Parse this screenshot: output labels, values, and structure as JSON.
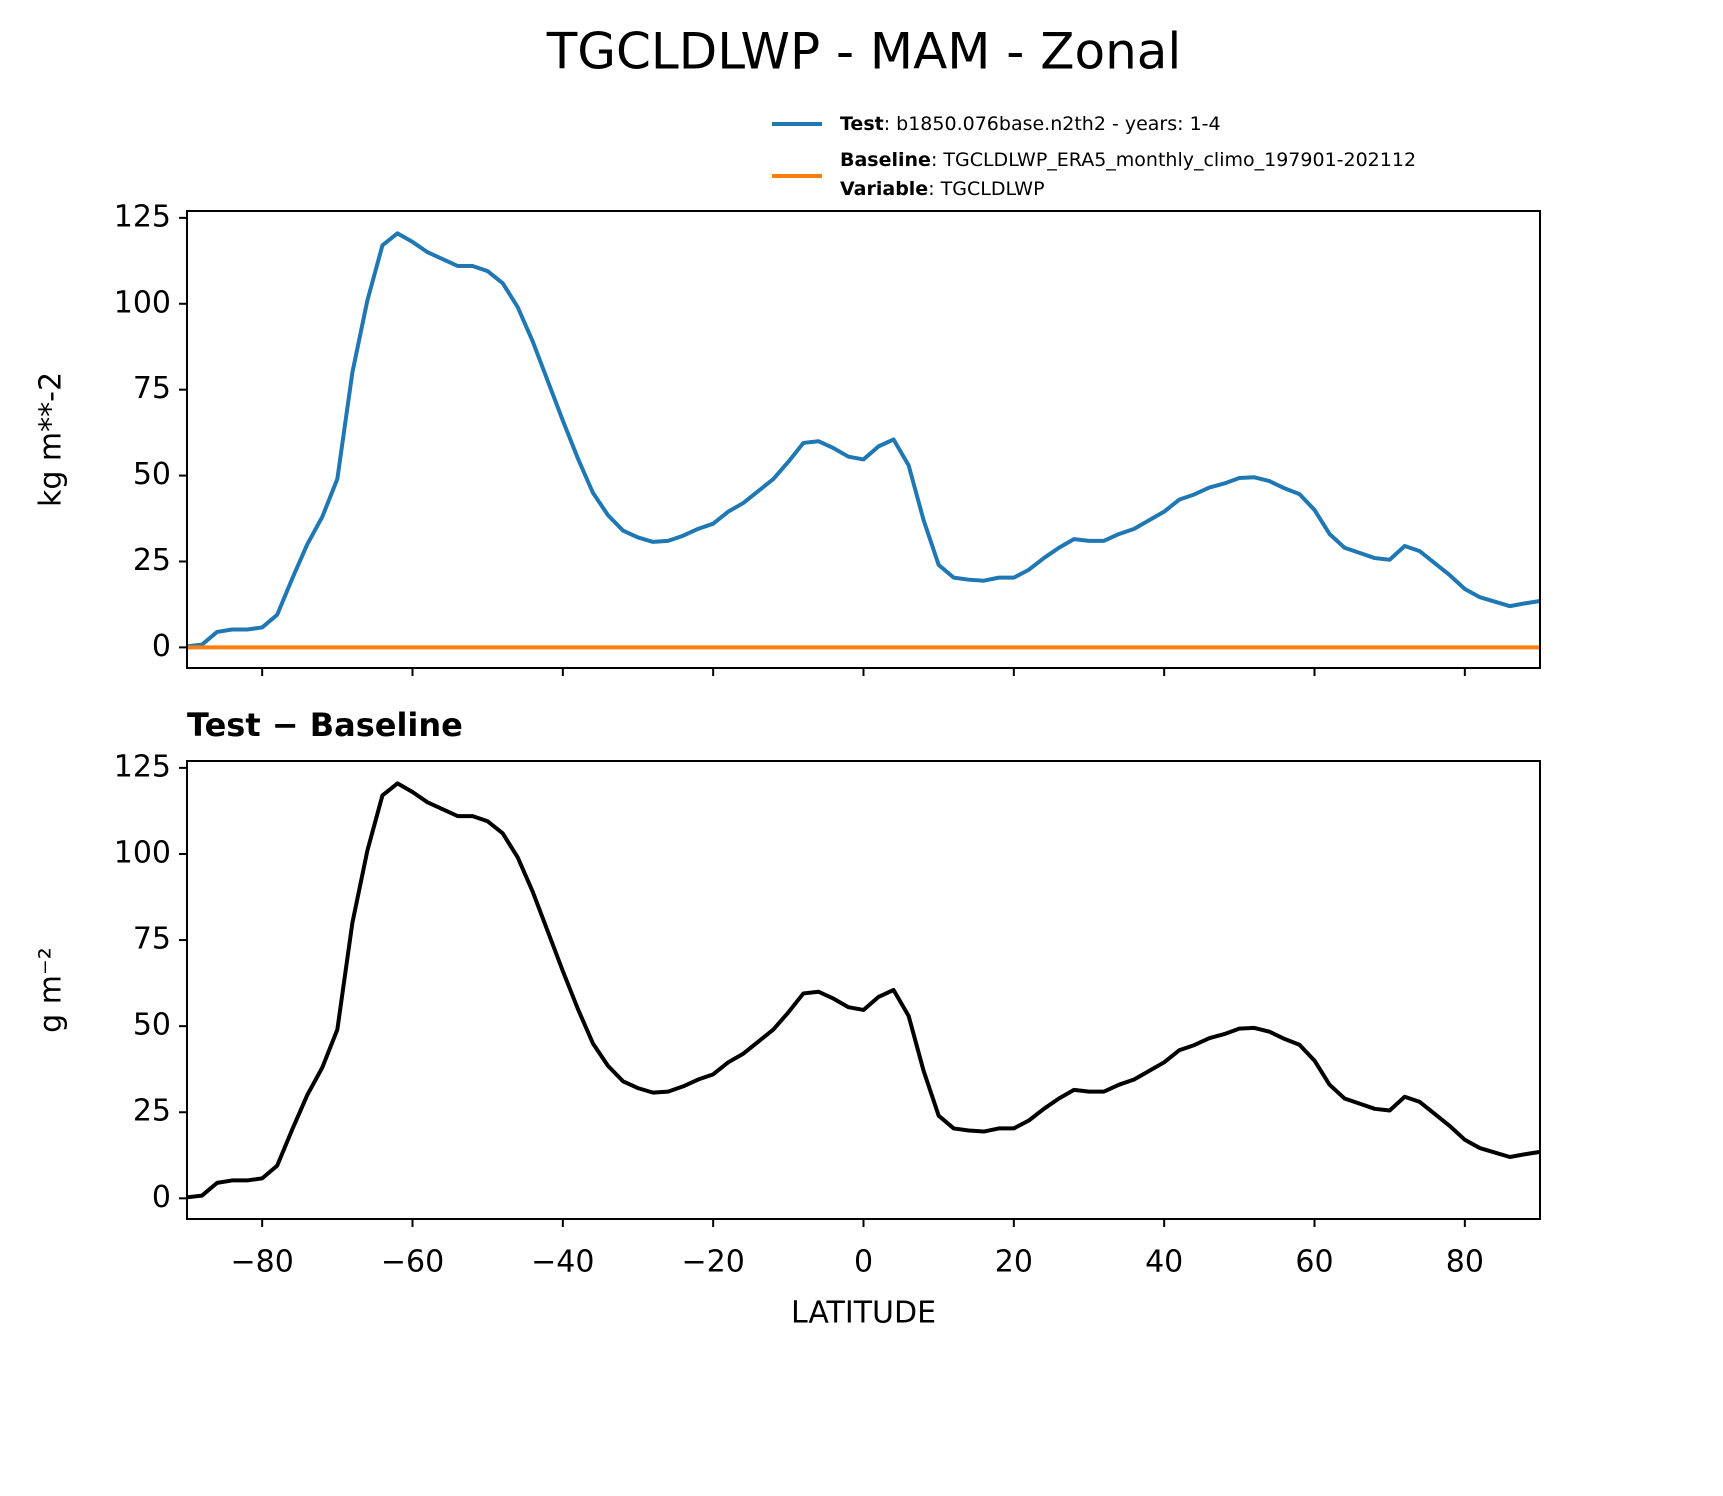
{
  "title": "TGCLDLWP - MAM - Zonal",
  "chart_data": [
    {
      "type": "line",
      "ylabel": "kg m**-2",
      "x": [
        -90,
        -88,
        -86,
        -84,
        -82,
        -80,
        -78,
        -76,
        -74,
        -72,
        -70,
        -68,
        -66,
        -64,
        -62,
        -60,
        -58,
        -56,
        -54,
        -52,
        -50,
        -48,
        -46,
        -44,
        -42,
        -40,
        -38,
        -36,
        -34,
        -32,
        -30,
        -28,
        -26,
        -24,
        -22,
        -20,
        -18,
        -16,
        -14,
        -12,
        -10,
        -8,
        -6,
        -4,
        -2,
        0,
        2,
        4,
        6,
        8,
        10,
        12,
        14,
        16,
        18,
        20,
        22,
        24,
        26,
        28,
        30,
        32,
        34,
        36,
        38,
        40,
        42,
        44,
        46,
        48,
        50,
        52,
        54,
        56,
        58,
        60,
        62,
        64,
        66,
        68,
        70,
        72,
        74,
        76,
        78,
        80,
        82,
        84,
        86,
        88,
        90
      ],
      "series": [
        {
          "name": "Test",
          "detail": ": b1850.076base.n2th2 - years: 1-4",
          "color": "#1f77b4",
          "values": [
            0.3,
            0.8,
            4.5,
            5.2,
            5.2,
            5.8,
            9.5,
            20,
            30,
            38,
            49,
            80,
            101,
            117,
            120.5,
            118,
            115,
            113,
            111,
            111,
            109.5,
            106,
            99,
            89,
            77.5,
            66,
            55,
            45,
            38.5,
            34,
            32,
            30.7,
            31,
            32.5,
            34.5,
            36,
            39.5,
            42,
            45.5,
            49,
            54,
            59.5,
            60,
            58,
            55.5,
            54.7,
            58.5,
            60.5,
            53,
            37,
            24,
            20.3,
            19.7,
            19.4,
            20.3,
            20.3,
            22.6,
            26,
            29,
            31.5,
            31,
            31,
            33,
            34.5,
            37,
            39.5,
            43,
            44.5,
            46.5,
            47.7,
            49.3,
            49.5,
            48.4,
            46.3,
            44.6,
            40,
            33,
            29,
            27.5,
            26,
            25.5,
            29.5,
            28,
            24.5,
            21,
            17,
            14.6,
            13.3,
            12,
            12.8,
            13.5
          ]
        },
        {
          "name": "Baseline",
          "detail": ": TGCLDLWP_ERA5_monthly_climo_197901-202112",
          "extra_name": "Variable",
          "extra_detail": ": TGCLDLWP",
          "color": "#ff7f0e",
          "values": [
            0,
            0,
            0,
            0,
            0,
            0,
            0,
            0,
            0,
            0,
            0,
            0,
            0,
            0,
            0,
            0,
            0,
            0,
            0,
            0,
            0,
            0,
            0,
            0,
            0,
            0,
            0,
            0,
            0,
            0,
            0,
            0,
            0,
            0,
            0,
            0,
            0,
            0,
            0,
            0,
            0,
            0,
            0,
            0,
            0,
            0,
            0,
            0,
            0,
            0,
            0,
            0,
            0,
            0,
            0,
            0,
            0,
            0,
            0,
            0,
            0,
            0,
            0,
            0,
            0,
            0,
            0,
            0,
            0,
            0,
            0,
            0,
            0,
            0,
            0,
            0,
            0,
            0,
            0,
            0,
            0,
            0,
            0,
            0,
            0,
            0,
            0,
            0,
            0,
            0,
            0
          ]
        }
      ],
      "xlim": [
        -90,
        90
      ],
      "ylim": [
        -6,
        127
      ],
      "xticks": [
        -80,
        -60,
        -40,
        -20,
        0,
        20,
        40,
        60,
        80
      ],
      "yticks": [
        0,
        25,
        50,
        75,
        100,
        125
      ]
    },
    {
      "type": "line",
      "title": "Test − Baseline",
      "xlabel": "LATITUDE",
      "ylabel": "g m⁻²",
      "x": [
        -90,
        -88,
        -86,
        -84,
        -82,
        -80,
        -78,
        -76,
        -74,
        -72,
        -70,
        -68,
        -66,
        -64,
        -62,
        -60,
        -58,
        -56,
        -54,
        -52,
        -50,
        -48,
        -46,
        -44,
        -42,
        -40,
        -38,
        -36,
        -34,
        -32,
        -30,
        -28,
        -26,
        -24,
        -22,
        -20,
        -18,
        -16,
        -14,
        -12,
        -10,
        -8,
        -6,
        -4,
        -2,
        0,
        2,
        4,
        6,
        8,
        10,
        12,
        14,
        16,
        18,
        20,
        22,
        24,
        26,
        28,
        30,
        32,
        34,
        36,
        38,
        40,
        42,
        44,
        46,
        48,
        50,
        52,
        54,
        56,
        58,
        60,
        62,
        64,
        66,
        68,
        70,
        72,
        74,
        76,
        78,
        80,
        82,
        84,
        86,
        88,
        90
      ],
      "series": [
        {
          "color": "#000000",
          "values": [
            0.3,
            0.8,
            4.5,
            5.2,
            5.2,
            5.8,
            9.5,
            20,
            30,
            38,
            49,
            80,
            101,
            117,
            120.5,
            118,
            115,
            113,
            111,
            111,
            109.5,
            106,
            99,
            89,
            77.5,
            66,
            55,
            45,
            38.5,
            34,
            32,
            30.7,
            31,
            32.5,
            34.5,
            36,
            39.5,
            42,
            45.5,
            49,
            54,
            59.5,
            60,
            58,
            55.5,
            54.7,
            58.5,
            60.5,
            53,
            37,
            24,
            20.3,
            19.7,
            19.4,
            20.3,
            20.3,
            22.6,
            26,
            29,
            31.5,
            31,
            31,
            33,
            34.5,
            37,
            39.5,
            43,
            44.5,
            46.5,
            47.7,
            49.3,
            49.5,
            48.4,
            46.3,
            44.6,
            40,
            33,
            29,
            27.5,
            26,
            25.5,
            29.5,
            28,
            24.5,
            21,
            17,
            14.6,
            13.3,
            12,
            12.8,
            13.5
          ]
        }
      ],
      "xlim": [
        -90,
        90
      ],
      "ylim": [
        -6,
        127
      ],
      "xticks": [
        {
          "value": -80,
          "label": "−80"
        },
        {
          "value": -60,
          "label": "−60"
        },
        {
          "value": -40,
          "label": "−40"
        },
        {
          "value": -20,
          "label": "−20"
        },
        0,
        20,
        40,
        60,
        80
      ],
      "yticks": [
        0,
        25,
        50,
        75,
        100,
        125
      ]
    }
  ]
}
